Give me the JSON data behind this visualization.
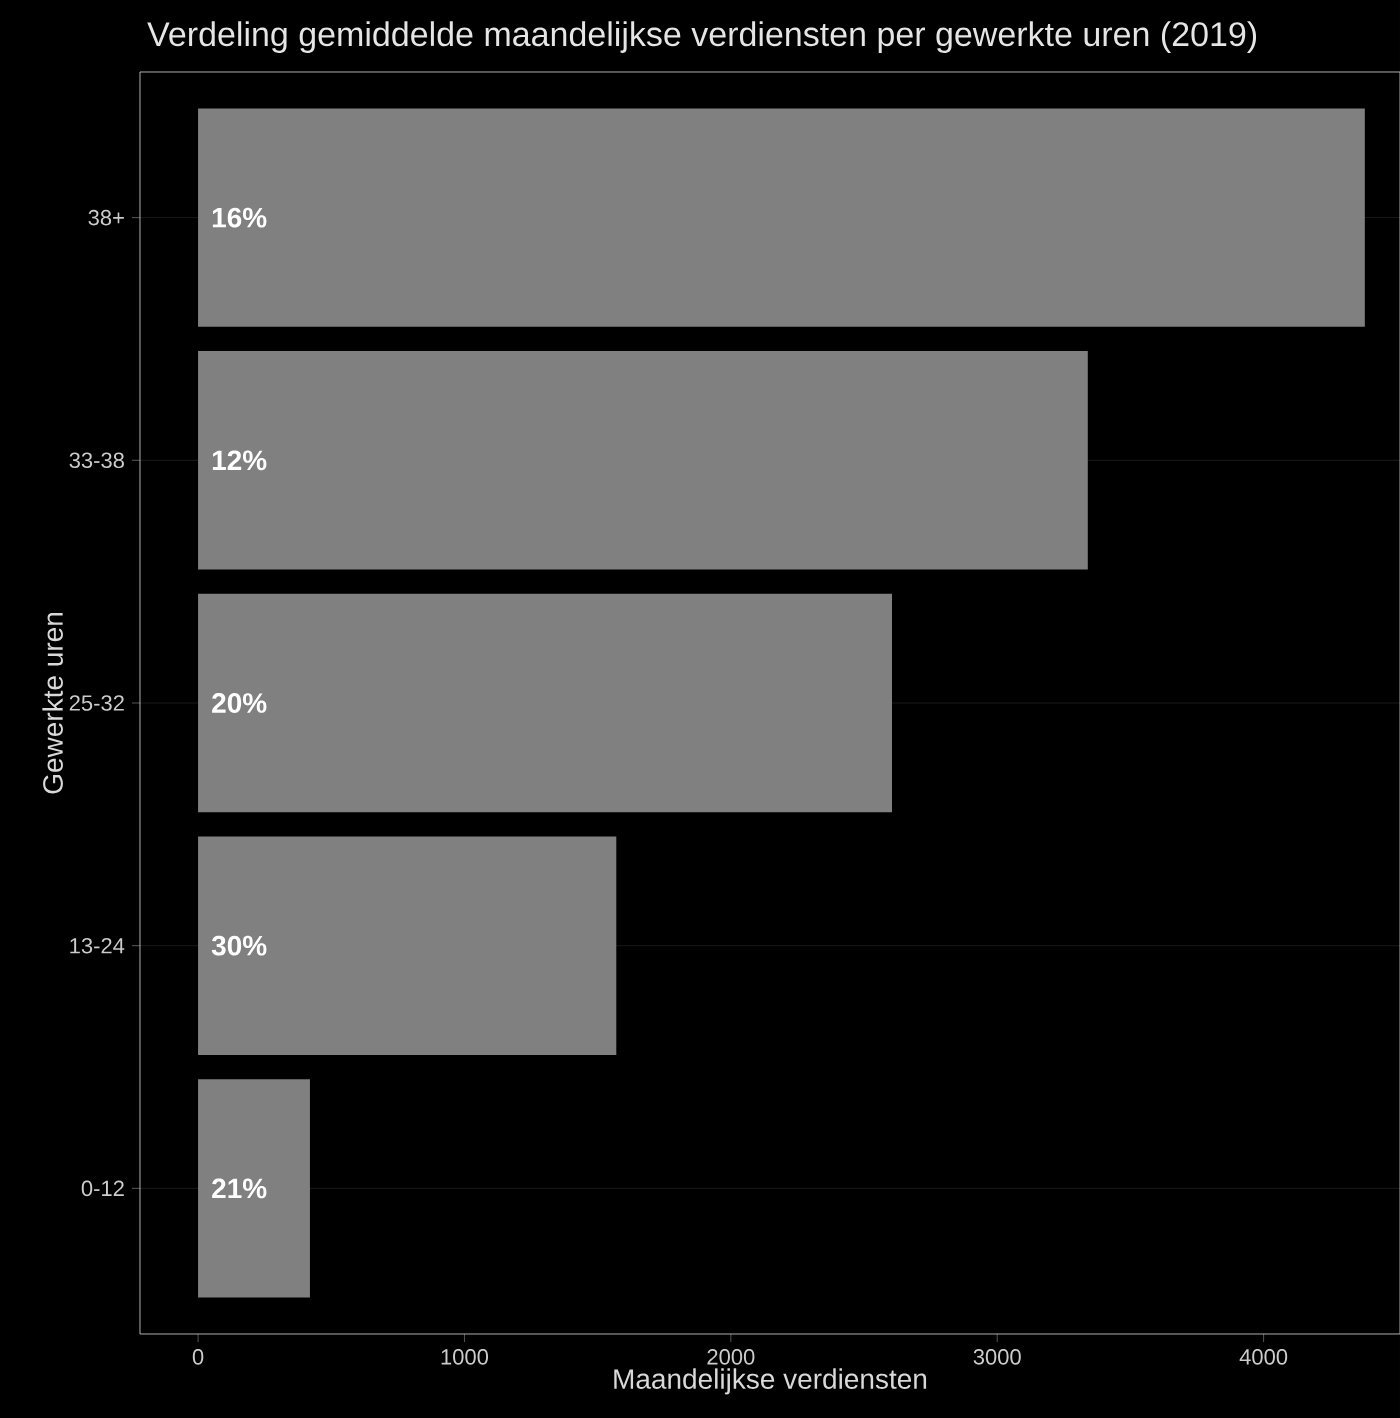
{
  "chart_data": {
    "type": "bar",
    "orientation": "horizontal",
    "title": "Verdeling gemiddelde maandelijkse verdiensten per gewerkte uren (2019)",
    "xlabel": "Maandelijkse verdiensten",
    "ylabel": "Gewerkte uren",
    "categories": [
      "38+",
      "33-38",
      "25-32",
      "13-24",
      "0-12"
    ],
    "values": [
      4380,
      3340,
      2605,
      1570,
      420
    ],
    "annotations": [
      "16%",
      "12%",
      "20%",
      "30%",
      "21%"
    ],
    "color": "#808080",
    "xlim": [
      -218,
      4512
    ],
    "xticks": [
      0,
      1000,
      2000,
      3000,
      4000
    ],
    "grid": "y"
  }
}
